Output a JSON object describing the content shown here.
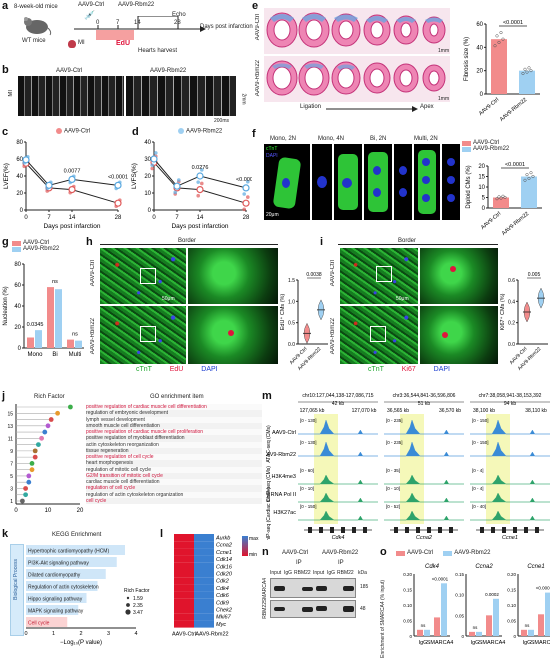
{
  "panel_letters": [
    "a",
    "b",
    "c",
    "d",
    "e",
    "f",
    "g",
    "h",
    "i",
    "j",
    "k",
    "l",
    "m",
    "n",
    "o"
  ],
  "a": {
    "mice": "8-week-old mice",
    "wt": "WT mice",
    "ctrl": "AAV9-Ctrl",
    "rbm": "AAV9-Rbm22",
    "echo": "Echo",
    "mi": "MI",
    "edu": "EdU",
    "dpi": "Days post infarction",
    "harvest": "Hearts harvest",
    "ticks": [
      "0",
      "7",
      "14",
      "28"
    ]
  },
  "b": {
    "ctrl": "AAV9-Ctrl",
    "rbm": "AAV9-Rbm22",
    "mi": "MI",
    "scale_mm": "2mm",
    "scale_ms": "200ms"
  },
  "c": {
    "chart_data": {
      "type": "line",
      "xlabel": "Days post infarction",
      "ylabel": "LVEF(%)",
      "x": [
        0,
        7,
        14,
        28
      ],
      "ylim": [
        0,
        80
      ],
      "yticks": [
        "0",
        "20",
        "40",
        "60",
        "80"
      ],
      "series": [
        {
          "name": "AAV9-Ctrl",
          "values": [
            55,
            26,
            24,
            8
          ]
        },
        {
          "name": "AAV9-Rbm22",
          "values": [
            59,
            29,
            36,
            29
          ]
        }
      ],
      "pvalues": [
        "0.0077",
        "<0.0001"
      ]
    }
  },
  "d": {
    "chart_data": {
      "type": "line",
      "xlabel": "Days post infarction",
      "ylabel": "LVFS(%)",
      "x": [
        0,
        7,
        14,
        28
      ],
      "ylim": [
        0,
        40
      ],
      "yticks": [
        "0",
        "10",
        "20",
        "30",
        "40"
      ],
      "series": [
        {
          "name": "AAV9-Ctrl",
          "values": [
            28,
            13,
            12,
            4
          ]
        },
        {
          "name": "AAV9-Rbm22",
          "values": [
            30,
            14,
            20,
            13
          ]
        }
      ],
      "pvalues": [
        "0.0276",
        "<0.0001"
      ]
    }
  },
  "e": {
    "ctrl": "AAV9-Ctrl",
    "rbm": "AAV9-Rbm22",
    "scale": "1mm",
    "ligation": "Ligation",
    "apex": "Apex",
    "chart_data": {
      "type": "bar",
      "ylabel": "Fibrosis size (%)",
      "categories": [
        "AAV9-Ctrl",
        "AAV9-Rbm22"
      ],
      "values": [
        47,
        20
      ],
      "ylim": [
        0,
        60
      ],
      "yticks": [
        "0",
        "20",
        "40",
        "60"
      ],
      "pvalue": "<0.0001"
    }
  },
  "f": {
    "headers": [
      "Mono, 2N",
      "Mono, 4N",
      "Bi, 2N",
      "Multi, 2N"
    ],
    "ctnt": "cTnT",
    "dapi": "DAPI",
    "scale": "20μm",
    "legend": [
      "AAV9-Ctrl",
      "AAV9-Rbm22"
    ],
    "chart_data": {
      "type": "bar",
      "ylabel": "Diploid CMs (%)",
      "categories": [
        "AAV9-Ctrl",
        "AAV9-Rbm22"
      ],
      "values": [
        5,
        15
      ],
      "ylim": [
        0,
        20
      ],
      "yticks": [
        "0",
        "5",
        "10",
        "15",
        "20"
      ],
      "pvalue": "<0.0001"
    }
  },
  "g": {
    "legend": [
      "AAV9-Ctrl",
      "AAV9-Rbm22"
    ],
    "chart_data": {
      "type": "bar",
      "ylabel": "Nucleation (%)",
      "categories": [
        "Mono",
        "Bi",
        "Multi"
      ],
      "series": [
        {
          "name": "AAV9-Ctrl",
          "values": [
            10,
            58,
            8
          ]
        },
        {
          "name": "AAV9-Rbm22",
          "values": [
            17,
            56,
            7
          ]
        }
      ],
      "ylim": [
        0,
        80
      ],
      "yticks": [
        "0",
        "20",
        "40",
        "60",
        "80"
      ],
      "pvalues": [
        "0.0345",
        "ns",
        "ns"
      ]
    }
  },
  "h": {
    "border": "Border",
    "ctrl": "AAV9-Ctrl",
    "rbm": "AAV9-Rbm22",
    "ctnt": "cTnT",
    "edu": "EdU",
    "dapi": "DAPI",
    "scale": "50μm",
    "chart_data": {
      "type": "violin",
      "ylabel": "EdU⁺ CMs (%)",
      "categories": [
        "AAV9-Ctrl",
        "AAV9-Rbm22"
      ],
      "medians": [
        0.25,
        0.8
      ],
      "ylim": [
        0,
        1.5
      ],
      "yticks": [
        "0.0",
        "0.5",
        "1.0",
        "1.5"
      ],
      "pvalue": "0.0038"
    }
  },
  "i": {
    "border": "Border",
    "ctrl": "AAV9-Ctrl",
    "rbm": "AAV9-Rbm22",
    "ctnt": "cTnT",
    "ki67": "Ki67",
    "dapi": "DAPI",
    "scale": "50μm",
    "chart_data": {
      "type": "violin",
      "ylabel": "Ki67⁺ CMs (%)",
      "categories": [
        "AAV9-Ctrl",
        "AAV9-Rbm22"
      ],
      "medians": [
        0.3,
        0.43
      ],
      "ylim": [
        0,
        0.6
      ],
      "yticks": [
        "0.0",
        "0.2",
        "0.4",
        "0.6"
      ],
      "pvalue": "0.005"
    }
  },
  "j": {
    "rich": "Rich Factor",
    "go": "GO enrichment item",
    "xticks": [
      "0",
      "10",
      "20"
    ],
    "yticks": [
      "1",
      "3",
      "5",
      "7",
      "9",
      "11",
      "13",
      "15"
    ],
    "terms": [
      "positive regulation of cardiac muscle cell differentiation",
      "regulation of embryonic development",
      "lymph vessel development",
      "smooth muscle cell differentiation",
      "positive regulation of cardiac muscle cell proliferation",
      "positive regulation of myoblast differentiation",
      "actin cytoskeleton reorganization",
      "tissue regeneration",
      "positive regulation of cell cycle",
      "heart morphogenesis",
      "regulation of mitotic cell cycle",
      "G2/M transition of mitotic cell cycle",
      "cardiac muscle cell differentiation",
      "regulation of cell cycle",
      "regulation of actin cytoskeleton organization",
      "cell cycle"
    ],
    "rich_values": [
      17,
      13,
      11,
      10,
      9,
      8,
      7,
      6,
      6,
      5,
      5,
      4,
      4,
      3,
      3,
      2
    ]
  },
  "k": {
    "title": "KEGG Enrichment",
    "side": "Biological Process",
    "xlabel": "−Log₁₀(P value)",
    "xticks": [
      "0",
      "1",
      "2",
      "3",
      "4"
    ],
    "legend_title": "Rich Factor",
    "legend": [
      "1.59",
      "2.35",
      "3.47"
    ],
    "terms": [
      "Hypertrophic cardiomyopathy (HCM)",
      "PI3K-Akt signaling pathway",
      "Dilated cardiomyopathy",
      "Regulation of actin cytoskeleton",
      "Hippo signaling pathway",
      "MAPK signaling pathway",
      "Cell cycle"
    ],
    "values": [
      3.6,
      3.3,
      2.9,
      2.6,
      2.2,
      1.9,
      1.5
    ]
  },
  "l": {
    "genes": [
      "Aurkb",
      "Ccna2",
      "Ccne1",
      "Cdk14",
      "Cdk16",
      "Cdk20",
      "Cdk2",
      "Cdk4",
      "Cdk6",
      "Cdk9",
      "Chek2",
      "Mki67",
      "Myc"
    ],
    "xlabels": [
      "AAV9-Ctrl",
      "AAV9-Rbm22"
    ],
    "legend": [
      "max",
      "min"
    ]
  },
  "m": {
    "regions": [
      "chr10:127,044,138-127,086,715",
      "chr3:36,544,841-36,596,806",
      "chr7:38,058,941-38,153,392"
    ],
    "widths": [
      "42 kb",
      "51 kb",
      "94 kb"
    ],
    "coords": [
      [
        "127,065 kb",
        "127,070 kb"
      ],
      [
        "36,565 kb",
        "36,570 kb"
      ],
      [
        "38,100 kb",
        "38,110 kb"
      ]
    ],
    "genes": [
      "Cdk4",
      "Ccna2",
      "Ccne1"
    ],
    "tracks": [
      "AAV9-Ctrl",
      "AAV9-Rbm22",
      "H3K4me3",
      "RNA Pol II",
      "H3K27ac"
    ],
    "groups": [
      "ATAC-seq (CMs)",
      "ChIP-seq (CMs)",
      "ChIP-seq (Cardiac tissue)"
    ],
    "ranges": [
      [
        "[0 - 130]",
        "[0 - 130]",
        "[0 - 60]",
        "[0 - 10]",
        "[0 - 150]"
      ],
      [
        "[0 - 235]",
        "[0 - 235]",
        "[0 - 35]",
        "[0 - 10]",
        "[0 - 52]"
      ],
      [
        "[0 - 150]",
        "[0 - 150]",
        "[0 - 4]",
        "[0 - 4]",
        "[0 - 40]"
      ]
    ]
  },
  "n": {
    "ctrl": "AAV9-Ctrl",
    "rbm": "AAV9-Rbm22",
    "ip": "IP",
    "lanes": [
      "Input",
      "IgG",
      "RBM22",
      "Input",
      "IgG",
      "RBM22"
    ],
    "kda": "kDa",
    "rows": [
      "SMARCA4",
      "RBM22"
    ],
    "markers": [
      "185",
      "48"
    ]
  },
  "o": {
    "legend": [
      "AAV9-Ctrl",
      "AAV9-Rbm22"
    ],
    "ylabel": "Enrichment of SMARCA4 (% input)",
    "chart_data": [
      {
        "type": "bar",
        "title": "Cdk4",
        "categories": [
          "IgG",
          "SMARCA4"
        ],
        "series": [
          {
            "name": "AAV9-Ctrl",
            "values": [
              0.02,
              0.06
            ]
          },
          {
            "name": "AAV9-Rbm22",
            "values": [
              0.02,
              0.17
            ]
          }
        ],
        "ylim": [
          0,
          0.2
        ],
        "yticks": [
          "0",
          "0.05",
          "0.10",
          "0.15",
          "0.20"
        ],
        "pvalues": [
          "ns",
          "<0.0001"
        ]
      },
      {
        "type": "bar",
        "title": "Ccna2",
        "categories": [
          "IgG",
          "SMARCA4"
        ],
        "series": [
          {
            "name": "AAV9-Ctrl",
            "values": [
              0.01,
              0.05
            ]
          },
          {
            "name": "AAV9-Rbm22",
            "values": [
              0.01,
              0.09
            ]
          }
        ],
        "ylim": [
          0,
          0.15
        ],
        "yticks": [
          "0",
          "0.05",
          "0.10",
          "0.15"
        ],
        "pvalues": [
          "ns",
          "0.0002"
        ]
      },
      {
        "type": "bar",
        "title": "Ccne1",
        "categories": [
          "IgG",
          "SMARCA4"
        ],
        "series": [
          {
            "name": "AAV9-Ctrl",
            "values": [
              0.02,
              0.07
            ]
          },
          {
            "name": "AAV9-Rbm22",
            "values": [
              0.02,
              0.14
            ]
          }
        ],
        "ylim": [
          0,
          0.2
        ],
        "yticks": [
          "0",
          "0.05",
          "0.10",
          "0.15",
          "0.20"
        ],
        "pvalues": [
          "ns",
          "<0.0001"
        ]
      }
    ]
  },
  "colors": {
    "ctrl": "#f28b8b",
    "rbm": "#9fd0f2",
    "ctrl_dark": "#e05a5a",
    "rbm_dark": "#5aa9e0",
    "edu": "#e0143c",
    "ctnt": "#1aa52a",
    "dapi": "#1a3cd0",
    "heat_max": "#3a7fd0",
    "heat_min": "#e0142c"
  }
}
